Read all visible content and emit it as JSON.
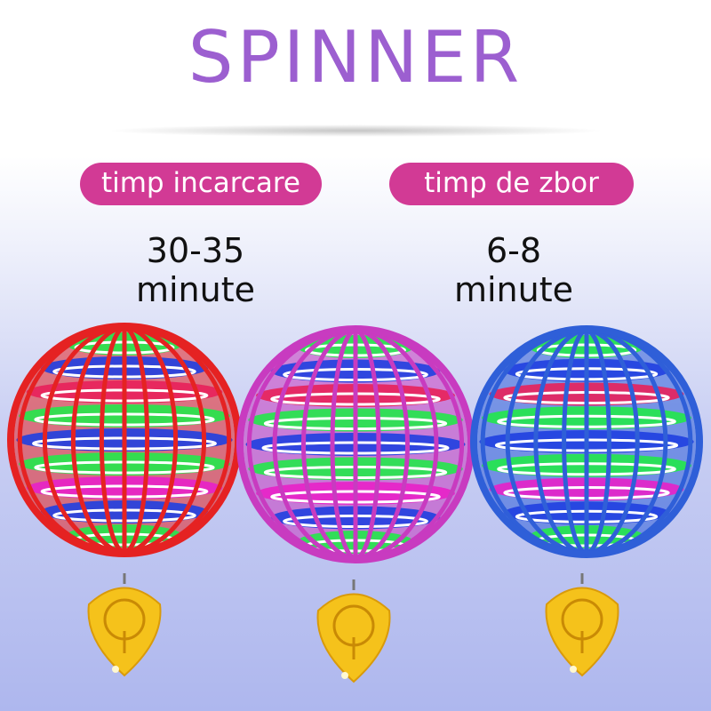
{
  "title": "SPINNER",
  "specs": [
    {
      "label": "timp incarcare",
      "value": "30-35",
      "unit": "minute"
    },
    {
      "label": "timp de zbor",
      "value": "6-8",
      "unit": "minute"
    }
  ],
  "products": [
    {
      "name": "red-ball",
      "frame_color": "#e52222"
    },
    {
      "name": "magenta-ball",
      "frame_color": "#c83bc0"
    },
    {
      "name": "blue-ball",
      "frame_color": "#2f5fd8"
    }
  ],
  "remote_color": "#f5c21b"
}
